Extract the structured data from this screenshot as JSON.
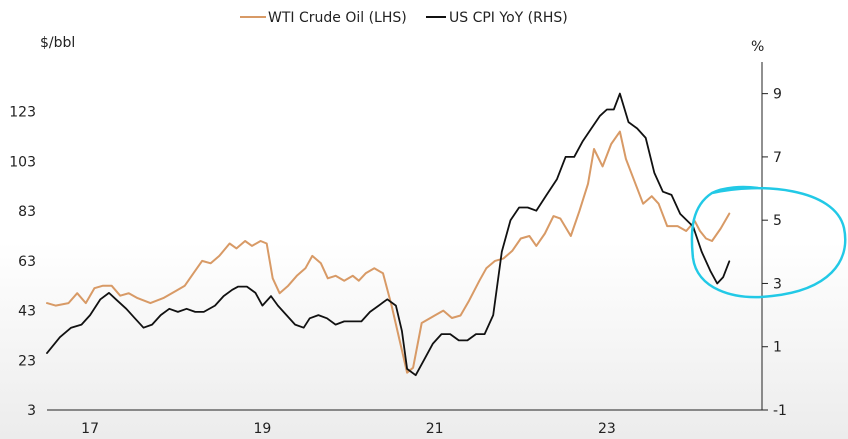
{
  "chart_data": {
    "type": "line",
    "title": "",
    "left_axis": {
      "unit": "$/bbl",
      "ylim": [
        3,
        143
      ],
      "ticks": [
        3,
        23,
        43,
        63,
        83,
        103,
        123
      ]
    },
    "right_axis": {
      "unit": "%",
      "ylim": [
        -1,
        10
      ],
      "ticks": [
        -1,
        1,
        3,
        5,
        7,
        9
      ]
    },
    "x_axis": {
      "xlim": [
        2016.5,
        2024.8
      ],
      "ticks": [
        {
          "value": 2017,
          "label": "17"
        },
        {
          "value": 2019,
          "label": "19"
        },
        {
          "value": 2021,
          "label": "21"
        },
        {
          "value": 2023,
          "label": "23"
        }
      ]
    },
    "legend_position": "top",
    "annotation": {
      "shape": "hand-drawn circle",
      "color": "#22c9e6",
      "note": "highlights 2024 divergence"
    },
    "series": [
      {
        "name": "WTI Crude Oil (LHS)",
        "axis": "left",
        "color": "#d89a66",
        "points": [
          [
            2016.5,
            46
          ],
          [
            2016.6,
            45
          ],
          [
            2016.75,
            46
          ],
          [
            2016.85,
            50
          ],
          [
            2016.95,
            46
          ],
          [
            2017.05,
            52
          ],
          [
            2017.15,
            53
          ],
          [
            2017.25,
            53
          ],
          [
            2017.35,
            49
          ],
          [
            2017.45,
            50
          ],
          [
            2017.55,
            48
          ],
          [
            2017.7,
            46
          ],
          [
            2017.85,
            48
          ],
          [
            2018.0,
            51
          ],
          [
            2018.1,
            53
          ],
          [
            2018.2,
            58
          ],
          [
            2018.3,
            63
          ],
          [
            2018.4,
            62
          ],
          [
            2018.5,
            65
          ],
          [
            2018.62,
            70
          ],
          [
            2018.7,
            68
          ],
          [
            2018.8,
            71
          ],
          [
            2018.88,
            69
          ],
          [
            2018.98,
            71
          ],
          [
            2019.05,
            70
          ],
          [
            2019.12,
            56
          ],
          [
            2019.2,
            50
          ],
          [
            2019.3,
            53
          ],
          [
            2019.4,
            57
          ],
          [
            2019.5,
            60
          ],
          [
            2019.58,
            65
          ],
          [
            2019.68,
            62
          ],
          [
            2019.76,
            56
          ],
          [
            2019.85,
            57
          ],
          [
            2019.95,
            55
          ],
          [
            2020.05,
            57
          ],
          [
            2020.12,
            55
          ],
          [
            2020.2,
            58
          ],
          [
            2020.3,
            60
          ],
          [
            2020.4,
            58
          ],
          [
            2020.5,
            45
          ],
          [
            2020.6,
            30
          ],
          [
            2020.68,
            18
          ],
          [
            2020.75,
            20
          ],
          [
            2020.85,
            38
          ],
          [
            2021.0,
            41
          ],
          [
            2021.1,
            43
          ],
          [
            2021.2,
            40
          ],
          [
            2021.3,
            41
          ],
          [
            2021.4,
            47
          ],
          [
            2021.52,
            55
          ],
          [
            2021.6,
            60
          ],
          [
            2021.7,
            63
          ],
          [
            2021.8,
            64
          ],
          [
            2021.9,
            67
          ],
          [
            2022.0,
            72
          ],
          [
            2022.1,
            73
          ],
          [
            2022.18,
            69
          ],
          [
            2022.28,
            74
          ],
          [
            2022.38,
            81
          ],
          [
            2022.46,
            80
          ],
          [
            2022.58,
            73
          ],
          [
            2022.68,
            83
          ],
          [
            2022.78,
            94
          ],
          [
            2022.85,
            108
          ],
          [
            2022.95,
            101
          ],
          [
            2023.05,
            110
          ],
          [
            2023.15,
            115
          ],
          [
            2023.22,
            104
          ],
          [
            2023.32,
            95
          ],
          [
            2023.42,
            86
          ],
          [
            2023.52,
            89
          ],
          [
            2023.6,
            86
          ],
          [
            2023.7,
            77
          ],
          [
            2023.82,
            77
          ],
          [
            2023.92,
            75
          ],
          [
            2024.02,
            79
          ],
          [
            2024.08,
            75
          ],
          [
            2024.15,
            72
          ],
          [
            2024.22,
            71
          ],
          [
            2024.32,
            76
          ],
          [
            2024.42,
            82
          ]
        ]
      },
      {
        "name": "US CPI YoY (RHS)",
        "axis": "right",
        "color": "#111111",
        "points": [
          [
            2016.5,
            0.8
          ],
          [
            2016.65,
            1.3
          ],
          [
            2016.78,
            1.6
          ],
          [
            2016.9,
            1.7
          ],
          [
            2017.0,
            2.0
          ],
          [
            2017.12,
            2.5
          ],
          [
            2017.22,
            2.7
          ],
          [
            2017.3,
            2.5
          ],
          [
            2017.42,
            2.2
          ],
          [
            2017.52,
            1.9
          ],
          [
            2017.62,
            1.6
          ],
          [
            2017.72,
            1.7
          ],
          [
            2017.82,
            2.0
          ],
          [
            2017.92,
            2.2
          ],
          [
            2018.02,
            2.1
          ],
          [
            2018.12,
            2.2
          ],
          [
            2018.22,
            2.1
          ],
          [
            2018.32,
            2.1
          ],
          [
            2018.45,
            2.3
          ],
          [
            2018.55,
            2.6
          ],
          [
            2018.65,
            2.8
          ],
          [
            2018.72,
            2.9
          ],
          [
            2018.82,
            2.9
          ],
          [
            2018.92,
            2.7
          ],
          [
            2019.0,
            2.3
          ],
          [
            2019.1,
            2.6
          ],
          [
            2019.18,
            2.3
          ],
          [
            2019.28,
            2.0
          ],
          [
            2019.38,
            1.7
          ],
          [
            2019.48,
            1.6
          ],
          [
            2019.55,
            1.9
          ],
          [
            2019.65,
            2.0
          ],
          [
            2019.75,
            1.9
          ],
          [
            2019.85,
            1.7
          ],
          [
            2019.95,
            1.8
          ],
          [
            2020.05,
            1.8
          ],
          [
            2020.15,
            1.8
          ],
          [
            2020.25,
            2.1
          ],
          [
            2020.35,
            2.3
          ],
          [
            2020.45,
            2.5
          ],
          [
            2020.55,
            2.3
          ],
          [
            2020.62,
            1.5
          ],
          [
            2020.68,
            0.3
          ],
          [
            2020.78,
            0.1
          ],
          [
            2020.88,
            0.6
          ],
          [
            2020.98,
            1.1
          ],
          [
            2021.08,
            1.4
          ],
          [
            2021.18,
            1.4
          ],
          [
            2021.28,
            1.2
          ],
          [
            2021.38,
            1.2
          ],
          [
            2021.48,
            1.4
          ],
          [
            2021.58,
            1.4
          ],
          [
            2021.68,
            2.0
          ],
          [
            2021.78,
            4.0
          ],
          [
            2021.88,
            5.0
          ],
          [
            2021.98,
            5.4
          ],
          [
            2022.08,
            5.4
          ],
          [
            2022.18,
            5.3
          ],
          [
            2022.3,
            5.8
          ],
          [
            2022.42,
            6.3
          ],
          [
            2022.52,
            7.0
          ],
          [
            2022.62,
            7.0
          ],
          [
            2022.72,
            7.5
          ],
          [
            2022.82,
            7.9
          ],
          [
            2022.92,
            8.3
          ],
          [
            2023.0,
            8.5
          ],
          [
            2023.08,
            8.5
          ],
          [
            2023.15,
            9.0
          ],
          [
            2023.25,
            8.1
          ],
          [
            2023.35,
            7.9
          ],
          [
            2023.45,
            7.6
          ],
          [
            2023.55,
            6.5
          ],
          [
            2023.65,
            5.9
          ],
          [
            2023.75,
            5.8
          ],
          [
            2023.85,
            5.2
          ],
          [
            2024.0,
            4.8
          ],
          [
            2024.1,
            4.0
          ],
          [
            2024.2,
            3.4
          ],
          [
            2024.28,
            3.0
          ],
          [
            2024.35,
            3.2
          ],
          [
            2024.42,
            3.7
          ]
        ]
      }
    ]
  }
}
